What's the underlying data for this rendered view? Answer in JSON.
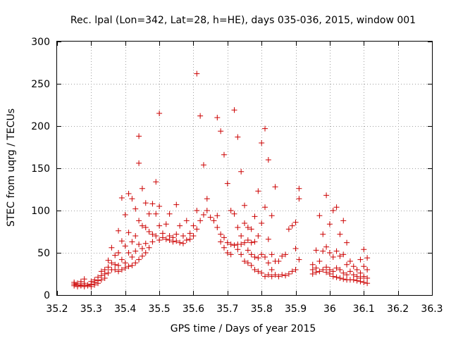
{
  "chart_data": {
    "type": "scatter",
    "title": "Rec. lpal (Lon=342, Lat=28, h=HE), days 035-036, 2015, window 001",
    "xlabel": "GPS time / Days of year 2015",
    "ylabel": "STEC from uqrg / TECUs",
    "xlim": [
      35.2,
      36.3
    ],
    "ylim": [
      0,
      300
    ],
    "xticks": [
      "35.2",
      "35.3",
      "35.4",
      "35.5",
      "35.6",
      "35.7",
      "35.8",
      "35.9",
      "36",
      "36.1",
      "36.2",
      "36.3"
    ],
    "yticks": [
      "0",
      "50",
      "100",
      "150",
      "200",
      "250",
      "300"
    ],
    "grid": true,
    "marker": "+",
    "color": "#cc0000",
    "points": [
      [
        35.25,
        15
      ],
      [
        35.25,
        13
      ],
      [
        35.25,
        11
      ],
      [
        35.26,
        14
      ],
      [
        35.26,
        12
      ],
      [
        35.26,
        10
      ],
      [
        35.27,
        16
      ],
      [
        35.27,
        12
      ],
      [
        35.27,
        11
      ],
      [
        35.28,
        19
      ],
      [
        35.28,
        14
      ],
      [
        35.28,
        10
      ],
      [
        35.29,
        12
      ],
      [
        35.29,
        11
      ],
      [
        35.3,
        16
      ],
      [
        35.3,
        13
      ],
      [
        35.3,
        10
      ],
      [
        35.31,
        18
      ],
      [
        35.31,
        15
      ],
      [
        35.31,
        12
      ],
      [
        35.32,
        21
      ],
      [
        35.32,
        17
      ],
      [
        35.32,
        14
      ],
      [
        35.33,
        28
      ],
      [
        35.33,
        23
      ],
      [
        35.33,
        18
      ],
      [
        35.34,
        30
      ],
      [
        35.34,
        25
      ],
      [
        35.34,
        20
      ],
      [
        35.35,
        41
      ],
      [
        35.35,
        33
      ],
      [
        35.35,
        26
      ],
      [
        35.36,
        56
      ],
      [
        35.36,
        38
      ],
      [
        35.36,
        30
      ],
      [
        35.37,
        47
      ],
      [
        35.37,
        36
      ],
      [
        35.37,
        30
      ],
      [
        35.38,
        76
      ],
      [
        35.38,
        50
      ],
      [
        35.38,
        35
      ],
      [
        35.38,
        28
      ],
      [
        35.39,
        115
      ],
      [
        35.39,
        64
      ],
      [
        35.39,
        42
      ],
      [
        35.39,
        30
      ],
      [
        35.4,
        95
      ],
      [
        35.4,
        58
      ],
      [
        35.4,
        38
      ],
      [
        35.4,
        32
      ],
      [
        35.41,
        120
      ],
      [
        35.41,
        74
      ],
      [
        35.41,
        50
      ],
      [
        35.41,
        34
      ],
      [
        35.42,
        114
      ],
      [
        35.42,
        63
      ],
      [
        35.42,
        45
      ],
      [
        35.42,
        35
      ],
      [
        35.43,
        102
      ],
      [
        35.43,
        70
      ],
      [
        35.43,
        52
      ],
      [
        35.43,
        38
      ],
      [
        35.44,
        188
      ],
      [
        35.44,
        156
      ],
      [
        35.44,
        88
      ],
      [
        35.44,
        60
      ],
      [
        35.44,
        42
      ],
      [
        35.45,
        126
      ],
      [
        35.45,
        82
      ],
      [
        35.45,
        55
      ],
      [
        35.45,
        46
      ],
      [
        35.46,
        109
      ],
      [
        35.46,
        80
      ],
      [
        35.46,
        61
      ],
      [
        35.46,
        50
      ],
      [
        35.47,
        96
      ],
      [
        35.47,
        75
      ],
      [
        35.47,
        56
      ],
      [
        35.48,
        108
      ],
      [
        35.48,
        72
      ],
      [
        35.48,
        63
      ],
      [
        35.49,
        134
      ],
      [
        35.49,
        96
      ],
      [
        35.49,
        70
      ],
      [
        35.5,
        215
      ],
      [
        35.5,
        105
      ],
      [
        35.5,
        82
      ],
      [
        35.5,
        65
      ],
      [
        35.51,
        73
      ],
      [
        35.51,
        68
      ],
      [
        35.52,
        84
      ],
      [
        35.52,
        66
      ],
      [
        35.53,
        96
      ],
      [
        35.53,
        70
      ],
      [
        35.53,
        65
      ],
      [
        35.54,
        68
      ],
      [
        35.54,
        63
      ],
      [
        35.55,
        107
      ],
      [
        35.55,
        72
      ],
      [
        35.55,
        64
      ],
      [
        35.56,
        82
      ],
      [
        35.56,
        62
      ],
      [
        35.57,
        70
      ],
      [
        35.57,
        61
      ],
      [
        35.58,
        88
      ],
      [
        35.58,
        65
      ],
      [
        35.59,
        73
      ],
      [
        35.59,
        66
      ],
      [
        35.6,
        82
      ],
      [
        35.6,
        70
      ],
      [
        35.61,
        262
      ],
      [
        35.61,
        100
      ],
      [
        35.61,
        78
      ],
      [
        35.62,
        212
      ],
      [
        35.62,
        88
      ],
      [
        35.63,
        154
      ],
      [
        35.63,
        95
      ],
      [
        35.64,
        114
      ],
      [
        35.64,
        100
      ],
      [
        35.65,
        92
      ],
      [
        35.66,
        88
      ],
      [
        35.67,
        210
      ],
      [
        35.67,
        94
      ],
      [
        35.67,
        80
      ],
      [
        35.68,
        194
      ],
      [
        35.68,
        72
      ],
      [
        35.68,
        63
      ],
      [
        35.69,
        166
      ],
      [
        35.69,
        68
      ],
      [
        35.69,
        56
      ],
      [
        35.7,
        132
      ],
      [
        35.7,
        62
      ],
      [
        35.7,
        50
      ],
      [
        35.71,
        100
      ],
      [
        35.71,
        60
      ],
      [
        35.71,
        48
      ],
      [
        35.72,
        219
      ],
      [
        35.72,
        96
      ],
      [
        35.72,
        59
      ],
      [
        35.73,
        187
      ],
      [
        35.73,
        80
      ],
      [
        35.73,
        60
      ],
      [
        35.73,
        54
      ],
      [
        35.74,
        146
      ],
      [
        35.74,
        70
      ],
      [
        35.74,
        60
      ],
      [
        35.74,
        48
      ],
      [
        35.75,
        106
      ],
      [
        35.75,
        85
      ],
      [
        35.75,
        62
      ],
      [
        35.75,
        40
      ],
      [
        35.76,
        80
      ],
      [
        35.76,
        65
      ],
      [
        35.76,
        53
      ],
      [
        35.76,
        38
      ],
      [
        35.77,
        78
      ],
      [
        35.77,
        62
      ],
      [
        35.77,
        48
      ],
      [
        35.77,
        35
      ],
      [
        35.78,
        93
      ],
      [
        35.78,
        63
      ],
      [
        35.78,
        45
      ],
      [
        35.78,
        30
      ],
      [
        35.79,
        123
      ],
      [
        35.79,
        70
      ],
      [
        35.79,
        44
      ],
      [
        35.79,
        28
      ],
      [
        35.8,
        180
      ],
      [
        35.8,
        85
      ],
      [
        35.8,
        48
      ],
      [
        35.8,
        26
      ],
      [
        35.81,
        197
      ],
      [
        35.81,
        104
      ],
      [
        35.81,
        45
      ],
      [
        35.81,
        22
      ],
      [
        35.82,
        160
      ],
      [
        35.82,
        66
      ],
      [
        35.82,
        38
      ],
      [
        35.82,
        24
      ],
      [
        35.83,
        94
      ],
      [
        35.83,
        48
      ],
      [
        35.83,
        30
      ],
      [
        35.83,
        22
      ],
      [
        35.84,
        128
      ],
      [
        35.84,
        40
      ],
      [
        35.84,
        24
      ],
      [
        35.85,
        40
      ],
      [
        35.85,
        22
      ],
      [
        35.86,
        46
      ],
      [
        35.86,
        24
      ],
      [
        35.87,
        48
      ],
      [
        35.87,
        23
      ],
      [
        35.88,
        78
      ],
      [
        35.88,
        25
      ],
      [
        35.89,
        82
      ],
      [
        35.89,
        28
      ],
      [
        35.9,
        86
      ],
      [
        35.9,
        55
      ],
      [
        35.9,
        30
      ],
      [
        35.91,
        126
      ],
      [
        35.91,
        114
      ],
      [
        35.91,
        42
      ],
      [
        35.95,
        36
      ],
      [
        35.95,
        30
      ],
      [
        35.95,
        25
      ],
      [
        35.96,
        53
      ],
      [
        35.96,
        32
      ],
      [
        35.96,
        27
      ],
      [
        35.97,
        94
      ],
      [
        35.97,
        40
      ],
      [
        35.97,
        28
      ],
      [
        35.98,
        72
      ],
      [
        35.98,
        52
      ],
      [
        35.98,
        30
      ],
      [
        35.99,
        118
      ],
      [
        35.99,
        57
      ],
      [
        35.99,
        33
      ],
      [
        35.99,
        27
      ],
      [
        36.0,
        84
      ],
      [
        36.0,
        50
      ],
      [
        36.0,
        30
      ],
      [
        36.0,
        25
      ],
      [
        36.01,
        100
      ],
      [
        36.01,
        45
      ],
      [
        36.01,
        28
      ],
      [
        36.01,
        22
      ],
      [
        36.02,
        104
      ],
      [
        36.02,
        52
      ],
      [
        36.02,
        32
      ],
      [
        36.02,
        21
      ],
      [
        36.03,
        72
      ],
      [
        36.03,
        46
      ],
      [
        36.03,
        30
      ],
      [
        36.03,
        20
      ],
      [
        36.04,
        88
      ],
      [
        36.04,
        48
      ],
      [
        36.04,
        26
      ],
      [
        36.04,
        19
      ],
      [
        36.05,
        62
      ],
      [
        36.05,
        36
      ],
      [
        36.05,
        24
      ],
      [
        36.05,
        18
      ],
      [
        36.06,
        40
      ],
      [
        36.06,
        28
      ],
      [
        36.06,
        18
      ],
      [
        36.07,
        34
      ],
      [
        36.07,
        24
      ],
      [
        36.07,
        18
      ],
      [
        36.08,
        30
      ],
      [
        36.08,
        22
      ],
      [
        36.08,
        17
      ],
      [
        36.09,
        42
      ],
      [
        36.09,
        26
      ],
      [
        36.09,
        20
      ],
      [
        36.09,
        16
      ],
      [
        36.1,
        54
      ],
      [
        36.1,
        34
      ],
      [
        36.1,
        22
      ],
      [
        36.1,
        15
      ],
      [
        36.11,
        44
      ],
      [
        36.11,
        30
      ],
      [
        36.11,
        20
      ],
      [
        36.11,
        14
      ]
    ]
  }
}
